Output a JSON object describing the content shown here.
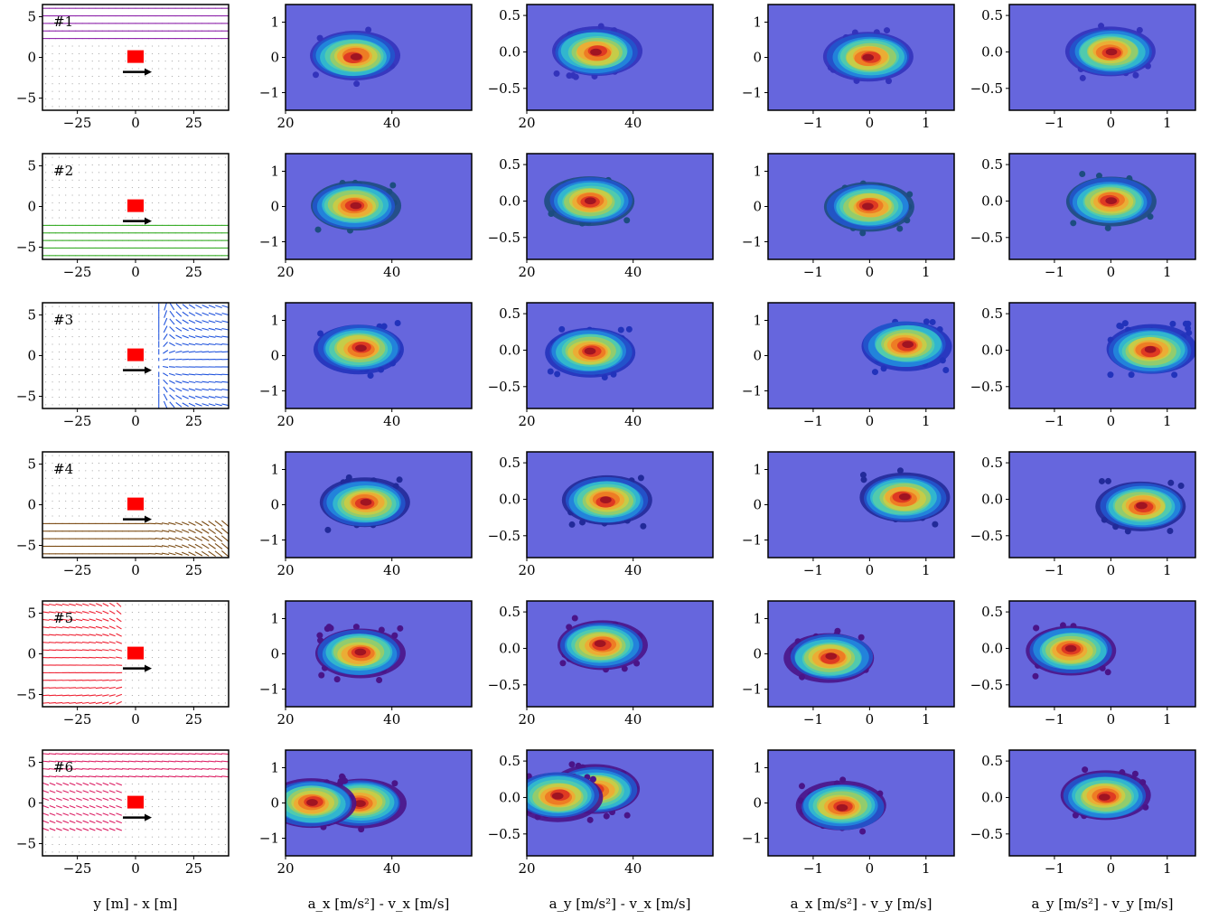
{
  "figure": {
    "columns": [
      {
        "xlabel": "y [m] - x [m]"
      },
      {
        "xlabel": "a_x [m/s²] - v_x [m/s]"
      },
      {
        "xlabel": "a_y [m/s²] - v_x [m/s]"
      },
      {
        "xlabel": "a_x [m/s²] - v_y [m/s]"
      },
      {
        "xlabel": "a_y [m/s²] - v_y [m/s]"
      }
    ],
    "colors": {
      "panel_bg": "#6666dd",
      "frame": "#000000",
      "vehicle": "#ff0000",
      "ego_arrow": "#000000"
    }
  },
  "chart_data": [
    {
      "type": "quiver",
      "scenario": "#1",
      "arrow_color": "#8b1fa8",
      "xticks": [
        "−25",
        "0",
        "25"
      ],
      "yticks": [
        "5",
        "0",
        "−5"
      ],
      "xlim": [
        -40,
        40
      ],
      "ylim": [
        -6.5,
        6.5
      ],
      "flow_region": "top (y > 2.5)",
      "flow_direction": "leftward"
    },
    {
      "type": "heatmap",
      "xticks": [
        "20",
        "40"
      ],
      "yticks": [
        "1",
        "0",
        "−1"
      ],
      "xlim": [
        20,
        55
      ],
      "ylim": [
        -1.5,
        1.5
      ],
      "peaks": [
        {
          "x": 33,
          "y": 0.02
        }
      ],
      "outer_color": "#3333bb"
    },
    {
      "type": "heatmap",
      "xticks": [
        "20",
        "40"
      ],
      "yticks": [
        "0.5",
        "0.0",
        "−0.5"
      ],
      "xlim": [
        20,
        55
      ],
      "ylim": [
        -0.8,
        0.65
      ],
      "peaks": [
        {
          "x": 33,
          "y": 0.0
        }
      ],
      "outer_color": "#3333bb"
    },
    {
      "type": "heatmap",
      "xticks": [
        "−1",
        "0",
        "1"
      ],
      "yticks": [
        "1",
        "0",
        "−1"
      ],
      "xlim": [
        -1.8,
        1.5
      ],
      "ylim": [
        -1.5,
        1.5
      ],
      "peaks": [
        {
          "x": 0,
          "y": 0
        }
      ],
      "outer_color": "#3333bb"
    },
    {
      "type": "heatmap",
      "xticks": [
        "−1",
        "0",
        "1"
      ],
      "yticks": [
        "0.5",
        "0.0",
        "−0.5"
      ],
      "xlim": [
        -1.8,
        1.5
      ],
      "ylim": [
        -0.8,
        0.65
      ],
      "peaks": [
        {
          "x": 0,
          "y": 0
        }
      ],
      "outer_color": "#3333bb"
    },
    {
      "type": "quiver",
      "scenario": "#2",
      "arrow_color": "#33aa22",
      "xticks": [
        "−25",
        "0",
        "25"
      ],
      "yticks": [
        "5",
        "0",
        "−5"
      ],
      "xlim": [
        -40,
        40
      ],
      "ylim": [
        -6.5,
        6.5
      ],
      "flow_region": "bottom (y < −2)",
      "flow_direction": "leftward"
    },
    {
      "type": "heatmap",
      "xticks": [
        "20",
        "40"
      ],
      "yticks": [
        "1",
        "0",
        "−1"
      ],
      "xlim": [
        20,
        55
      ],
      "ylim": [
        -1.5,
        1.5
      ],
      "peaks": [
        {
          "x": 33,
          "y": 0.02
        }
      ],
      "outer_color": "#1d4d80"
    },
    {
      "type": "heatmap",
      "xticks": [
        "20",
        "40"
      ],
      "yticks": [
        "0.5",
        "0.0",
        "−0.5"
      ],
      "xlim": [
        20,
        55
      ],
      "ylim": [
        -0.8,
        0.65
      ],
      "peaks": [
        {
          "x": 32,
          "y": 0.0
        }
      ],
      "outer_color": "#1d4d80"
    },
    {
      "type": "heatmap",
      "xticks": [
        "−1",
        "0",
        "1"
      ],
      "yticks": [
        "1",
        "0",
        "−1"
      ],
      "xlim": [
        -1.8,
        1.5
      ],
      "ylim": [
        -1.5,
        1.5
      ],
      "peaks": [
        {
          "x": 0,
          "y": 0
        }
      ],
      "outer_color": "#1d4d80"
    },
    {
      "type": "heatmap",
      "xticks": [
        "−1",
        "0",
        "1"
      ],
      "yticks": [
        "0.5",
        "0.0",
        "−0.5"
      ],
      "xlim": [
        -1.8,
        1.5
      ],
      "ylim": [
        -0.8,
        0.65
      ],
      "peaks": [
        {
          "x": 0,
          "y": 0
        }
      ],
      "outer_color": "#1d4d80"
    },
    {
      "type": "quiver",
      "scenario": "#3",
      "arrow_color": "#2255dd",
      "xticks": [
        "−25",
        "0",
        "25"
      ],
      "yticks": [
        "5",
        "0",
        "−5"
      ],
      "xlim": [
        -40,
        40
      ],
      "ylim": [
        -6.5,
        6.5
      ],
      "flow_region": "right side",
      "flow_direction": "diverging around vehicle"
    },
    {
      "type": "heatmap",
      "xticks": [
        "20",
        "40"
      ],
      "yticks": [
        "1",
        "0",
        "−1"
      ],
      "xlim": [
        20,
        55
      ],
      "ylim": [
        -1.5,
        1.5
      ],
      "peaks": [
        {
          "x": 34,
          "y": 0.2
        }
      ],
      "outer_color": "#2233bb"
    },
    {
      "type": "heatmap",
      "xticks": [
        "20",
        "40"
      ],
      "yticks": [
        "0.5",
        "0.0",
        "−0.5"
      ],
      "xlim": [
        20,
        55
      ],
      "ylim": [
        -0.8,
        0.65
      ],
      "peaks": [
        {
          "x": 32,
          "y": -0.02
        }
      ],
      "outer_color": "#2233bb"
    },
    {
      "type": "heatmap",
      "xticks": [
        "−1",
        "0",
        "1"
      ],
      "yticks": [
        "1",
        "0",
        "−1"
      ],
      "xlim": [
        -1.8,
        1.5
      ],
      "ylim": [
        -1.5,
        1.5
      ],
      "peaks": [
        {
          "x": 0.65,
          "y": 0.3
        }
      ],
      "outer_color": "#2233bb"
    },
    {
      "type": "heatmap",
      "xticks": [
        "−1",
        "0",
        "1"
      ],
      "yticks": [
        "0.5",
        "0.0",
        "−0.5"
      ],
      "xlim": [
        -1.8,
        1.5
      ],
      "ylim": [
        -0.8,
        0.65
      ],
      "peaks": [
        {
          "x": 0.7,
          "y": 0.0
        }
      ],
      "outer_color": "#2233bb"
    },
    {
      "type": "quiver",
      "scenario": "#4",
      "arrow_color": "#7a4a12",
      "xticks": [
        "−25",
        "0",
        "25"
      ],
      "yticks": [
        "5",
        "0",
        "−5"
      ],
      "xlim": [
        -40,
        40
      ],
      "ylim": [
        -6.5,
        6.5
      ],
      "flow_region": "bottom",
      "flow_direction": "leftward, curving up on right"
    },
    {
      "type": "heatmap",
      "xticks": [
        "20",
        "40"
      ],
      "yticks": [
        "1",
        "0",
        "−1"
      ],
      "xlim": [
        20,
        55
      ],
      "ylim": [
        -1.5,
        1.5
      ],
      "peaks": [
        {
          "x": 35,
          "y": 0.05
        }
      ],
      "outer_color": "#222a99"
    },
    {
      "type": "heatmap",
      "xticks": [
        "20",
        "40"
      ],
      "yticks": [
        "0.5",
        "0.0",
        "−0.5"
      ],
      "xlim": [
        20,
        55
      ],
      "ylim": [
        -0.8,
        0.65
      ],
      "peaks": [
        {
          "x": 35,
          "y": -0.02
        }
      ],
      "outer_color": "#222a99"
    },
    {
      "type": "heatmap",
      "xticks": [
        "−1",
        "0",
        "1"
      ],
      "yticks": [
        "1",
        "0",
        "−1"
      ],
      "xlim": [
        -1.8,
        1.5
      ],
      "ylim": [
        -1.5,
        1.5
      ],
      "peaks": [
        {
          "x": 0.6,
          "y": 0.2
        }
      ],
      "outer_color": "#222a99"
    },
    {
      "type": "heatmap",
      "xticks": [
        "−1",
        "0",
        "1"
      ],
      "yticks": [
        "0.5",
        "0.0",
        "−0.5"
      ],
      "xlim": [
        -1.8,
        1.5
      ],
      "ylim": [
        -0.8,
        0.65
      ],
      "peaks": [
        {
          "x": 0.55,
          "y": -0.1
        }
      ],
      "outer_color": "#222a99"
    },
    {
      "type": "quiver",
      "scenario": "#5",
      "arrow_color": "#ee2233",
      "xticks": [
        "−25",
        "0",
        "25"
      ],
      "yticks": [
        "5",
        "0",
        "−5"
      ],
      "xlim": [
        -40,
        40
      ],
      "ylim": [
        -6.5,
        6.5
      ],
      "flow_region": "left side",
      "flow_direction": "converging toward vehicle"
    },
    {
      "type": "heatmap",
      "xticks": [
        "20",
        "40"
      ],
      "yticks": [
        "1",
        "0",
        "−1"
      ],
      "xlim": [
        20,
        55
      ],
      "ylim": [
        -1.5,
        1.5
      ],
      "peaks": [
        {
          "x": 34,
          "y": 0.02
        }
      ],
      "outer_color": "#4a1488"
    },
    {
      "type": "heatmap",
      "xticks": [
        "20",
        "40"
      ],
      "yticks": [
        "0.5",
        "0.0",
        "−0.5"
      ],
      "xlim": [
        20,
        55
      ],
      "ylim": [
        -0.8,
        0.65
      ],
      "peaks": [
        {
          "x": 34,
          "y": 0.05
        }
      ],
      "outer_color": "#4a1488"
    },
    {
      "type": "heatmap",
      "xticks": [
        "−1",
        "0",
        "1"
      ],
      "yticks": [
        "1",
        "0",
        "−1"
      ],
      "xlim": [
        -1.8,
        1.5
      ],
      "ylim": [
        -1.5,
        1.5
      ],
      "peaks": [
        {
          "x": -0.7,
          "y": -0.1
        }
      ],
      "outer_color": "#4a1488"
    },
    {
      "type": "heatmap",
      "xticks": [
        "−1",
        "0",
        "1"
      ],
      "yticks": [
        "0.5",
        "0.0",
        "−0.5"
      ],
      "xlim": [
        -1.8,
        1.5
      ],
      "ylim": [
        -0.8,
        0.65
      ],
      "peaks": [
        {
          "x": -0.7,
          "y": -0.02
        }
      ],
      "outer_color": "#4a1488"
    },
    {
      "type": "quiver",
      "scenario": "#6",
      "arrow_color": "#dd2266",
      "xticks": [
        "−25",
        "0",
        "25"
      ],
      "yticks": [
        "5",
        "0",
        "−5"
      ],
      "xlim": [
        -40,
        40
      ],
      "ylim": [
        -6.5,
        6.5
      ],
      "flow_region": "top and left",
      "flow_direction": "leftward top, converging left"
    },
    {
      "type": "heatmap",
      "xticks": [
        "20",
        "40"
      ],
      "yticks": [
        "1",
        "0",
        "−1"
      ],
      "xlim": [
        20,
        55
      ],
      "ylim": [
        -1.5,
        1.5
      ],
      "peaks": [
        {
          "x": 34,
          "y": 0.02
        },
        {
          "x": 25,
          "y": 0.0
        }
      ],
      "outer_color": "#4a1488"
    },
    {
      "type": "heatmap",
      "xticks": [
        "20",
        "40"
      ],
      "yticks": [
        "0.5",
        "0.0",
        "−0.5"
      ],
      "xlim": [
        20,
        55
      ],
      "ylim": [
        -0.8,
        0.65
      ],
      "peaks": [
        {
          "x": 33,
          "y": 0.1
        },
        {
          "x": 26,
          "y": 0.02
        }
      ],
      "outer_color": "#4a1488"
    },
    {
      "type": "heatmap",
      "xticks": [
        "−1",
        "0",
        "1"
      ],
      "yticks": [
        "1",
        "0",
        "−1"
      ],
      "xlim": [
        -1.8,
        1.5
      ],
      "ylim": [
        -1.5,
        1.5
      ],
      "peaks": [
        {
          "x": -0.5,
          "y": -0.1
        }
      ],
      "outer_color": "#4a1488"
    },
    {
      "type": "heatmap",
      "xticks": [
        "−1",
        "0",
        "1"
      ],
      "yticks": [
        "0.5",
        "0.0",
        "−0.5"
      ],
      "xlim": [
        -1.8,
        1.5
      ],
      "ylim": [
        -0.8,
        0.65
      ],
      "peaks": [
        {
          "x": -0.1,
          "y": 0.02
        }
      ],
      "outer_color": "#4a1488"
    }
  ]
}
